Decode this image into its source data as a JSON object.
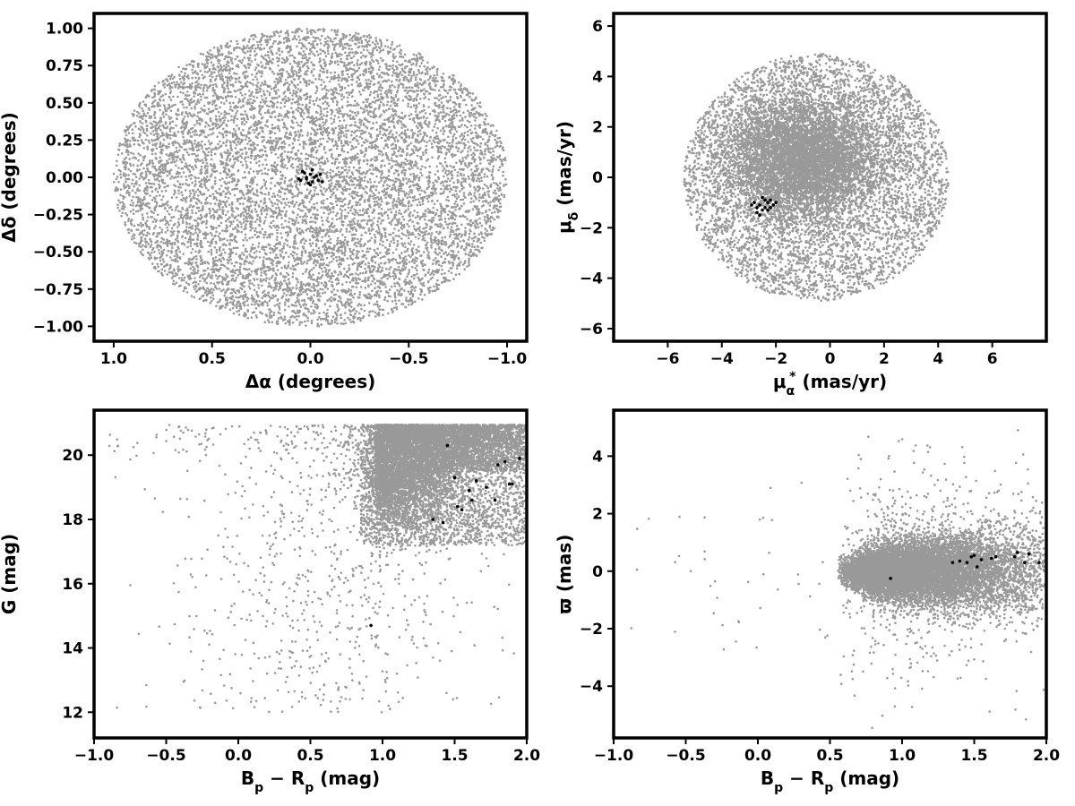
{
  "chart_data": [
    {
      "type": "scatter",
      "xlabel": "Δα (degrees)",
      "ylabel": "Δδ (degrees)",
      "xlim": [
        1.1,
        -1.1
      ],
      "ylim": [
        -1.1,
        1.1
      ],
      "xticks": [
        {
          "value": 1.0,
          "label": "1.0"
        },
        {
          "value": 0.5,
          "label": "0.5"
        },
        {
          "value": 0.0,
          "label": "0.0"
        },
        {
          "value": -0.5,
          "label": "−0.5"
        },
        {
          "value": -1.0,
          "label": "−1.0"
        }
      ],
      "yticks": [
        {
          "value": 1.0,
          "label": "1.00"
        },
        {
          "value": 0.75,
          "label": "0.75"
        },
        {
          "value": 0.5,
          "label": "0.50"
        },
        {
          "value": 0.25,
          "label": "0.25"
        },
        {
          "value": 0.0,
          "label": "0.00"
        },
        {
          "value": -0.25,
          "label": "−0.25"
        },
        {
          "value": -0.5,
          "label": "−0.50"
        },
        {
          "value": -0.75,
          "label": "−0.75"
        },
        {
          "value": -1.0,
          "label": "−1.00"
        }
      ],
      "grid": false,
      "series": [
        {
          "color": "#999999",
          "distribution": "uniform disk",
          "center": [
            0.0,
            0.0
          ],
          "radius": 1.0
        },
        {
          "color": "#000000",
          "x": [
            0.05,
            0.03,
            0.02,
            0.0,
            -0.01,
            -0.02,
            -0.03,
            -0.04,
            -0.05,
            0.04,
            0.01,
            -0.01,
            0.06,
            -0.06,
            0.0,
            0.02
          ],
          "y": [
            -0.02,
            0.03,
            -0.01,
            0.02,
            -0.03,
            0.0,
            0.01,
            -0.02,
            0.02,
            0.04,
            -0.04,
            0.05,
            -0.01,
            -0.03,
            -0.05,
            0.0
          ]
        }
      ]
    },
    {
      "type": "scatter",
      "xlabel": "μα* (mas/yr)",
      "ylabel": "μδ (mas/yr)",
      "xlim": [
        -8,
        8
      ],
      "ylim": [
        -6.5,
        6.5
      ],
      "xticks": [
        {
          "value": -6,
          "label": "−6"
        },
        {
          "value": -4,
          "label": "−4"
        },
        {
          "value": -2,
          "label": "−2"
        },
        {
          "value": 0,
          "label": "0"
        },
        {
          "value": 2,
          "label": "2"
        },
        {
          "value": 4,
          "label": "4"
        },
        {
          "value": 6,
          "label": "6"
        }
      ],
      "yticks": [
        {
          "value": 6,
          "label": "6"
        },
        {
          "value": 4,
          "label": "4"
        },
        {
          "value": 2,
          "label": "2"
        },
        {
          "value": 0,
          "label": "0"
        },
        {
          "value": -2,
          "label": "−2"
        },
        {
          "value": -4,
          "label": "−4"
        },
        {
          "value": -6,
          "label": "−6"
        }
      ],
      "grid": false,
      "series": [
        {
          "color": "#999999",
          "distribution": "disk with central concentration",
          "center": [
            -0.5,
            0.0
          ],
          "radius": 4.9,
          "core": [
            -1.0,
            0.7
          ]
        },
        {
          "color": "#000000",
          "x": [
            -2.8,
            -2.7,
            -2.6,
            -2.5,
            -2.4,
            -2.3,
            -2.2,
            -2.1,
            -2.0,
            -2.7,
            -2.5,
            -2.3,
            -2.6,
            -2.2,
            -2.9,
            -2.4
          ],
          "y": [
            -1.0,
            -1.2,
            -1.1,
            -1.3,
            -0.9,
            -1.0,
            -1.2,
            -1.1,
            -1.0,
            -1.4,
            -0.8,
            -1.3,
            -1.5,
            -0.9,
            -1.1,
            -1.2
          ]
        }
      ]
    },
    {
      "type": "scatter",
      "xlabel": "Bp − Rp (mag)",
      "ylabel": "G (mag)",
      "xlim": [
        -1.0,
        2.0
      ],
      "ylim": [
        11.2,
        21.4
      ],
      "xticks": [
        {
          "value": -1.0,
          "label": "−1.0"
        },
        {
          "value": -0.5,
          "label": "−0.5"
        },
        {
          "value": 0.0,
          "label": "0.0"
        },
        {
          "value": 0.5,
          "label": "0.5"
        },
        {
          "value": 1.0,
          "label": "1.0"
        },
        {
          "value": 1.5,
          "label": "1.5"
        },
        {
          "value": 2.0,
          "label": "2.0"
        }
      ],
      "yticks": [
        {
          "value": 20,
          "label": "20"
        },
        {
          "value": 18,
          "label": "18"
        },
        {
          "value": 16,
          "label": "16"
        },
        {
          "value": 14,
          "label": "14"
        },
        {
          "value": 12,
          "label": "12"
        }
      ],
      "grid": false,
      "series": [
        {
          "color": "#999999",
          "distribution": "colour-magnitude cloud, bright limit 12 mag, faint limit 21 mag"
        },
        {
          "color": "#000000",
          "x": [
            0.92,
            1.35,
            1.42,
            1.45,
            1.5,
            1.52,
            1.55,
            1.62,
            1.65,
            1.72,
            1.78,
            1.8,
            1.85,
            1.88,
            1.9,
            1.95,
            1.6
          ],
          "y": [
            14.7,
            18.0,
            17.9,
            20.3,
            19.3,
            18.4,
            18.3,
            18.6,
            19.2,
            19.0,
            18.6,
            19.7,
            19.8,
            19.1,
            19.1,
            19.9,
            18.9
          ]
        }
      ]
    },
    {
      "type": "scatter",
      "xlabel": "Bp − Rp (mag)",
      "ylabel": "ϖ (mas)",
      "xlim": [
        -1.0,
        2.0
      ],
      "ylim": [
        -5.8,
        5.6
      ],
      "xticks": [
        {
          "value": -1.0,
          "label": "−1.0"
        },
        {
          "value": -0.5,
          "label": "−0.5"
        },
        {
          "value": 0.0,
          "label": "0.0"
        },
        {
          "value": 0.5,
          "label": "0.5"
        },
        {
          "value": 1.0,
          "label": "1.0"
        },
        {
          "value": 1.5,
          "label": "1.5"
        },
        {
          "value": 2.0,
          "label": "2.0"
        }
      ],
      "yticks": [
        {
          "value": 4,
          "label": "4"
        },
        {
          "value": 2,
          "label": "2"
        },
        {
          "value": 0,
          "label": "0"
        },
        {
          "value": -2,
          "label": "−2"
        },
        {
          "value": -4,
          "label": "−4"
        }
      ],
      "grid": false,
      "series": [
        {
          "color": "#999999",
          "distribution": "horizontal band centred near 0 mas"
        },
        {
          "color": "#000000",
          "x": [
            0.92,
            1.35,
            1.4,
            1.45,
            1.48,
            1.5,
            1.52,
            1.62,
            1.65,
            1.78,
            1.8,
            1.85,
            1.88,
            1.95,
            1.55
          ],
          "y": [
            -0.25,
            0.3,
            0.35,
            0.3,
            0.5,
            0.55,
            0.15,
            0.45,
            0.5,
            0.5,
            0.65,
            0.3,
            0.6,
            0.3,
            0.4
          ]
        }
      ]
    }
  ]
}
